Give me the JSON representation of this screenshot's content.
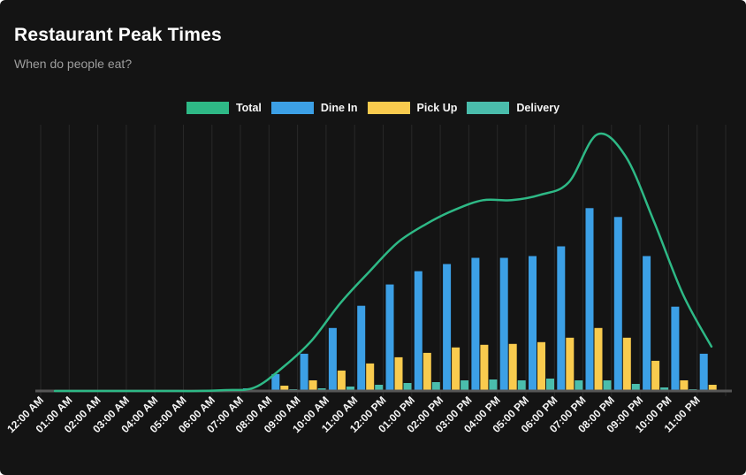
{
  "header": {
    "title": "Restaurant Peak Times",
    "subtitle": "When do people eat?"
  },
  "colors": {
    "background": "#141414",
    "title": "#ffffff",
    "subtitle": "#9e9e9e",
    "grid": "#282828",
    "axis": "#565656",
    "axis_label": "#f5f5f5"
  },
  "chart_data": {
    "type": "bar",
    "title": "Restaurant Peak Times",
    "subtitle": "When do people eat?",
    "categories": [
      "12:00 AM",
      "01:00 AM",
      "02:00 AM",
      "03:00 AM",
      "04:00 AM",
      "05:00 AM",
      "06:00 AM",
      "07:00 AM",
      "08:00 AM",
      "09:00 AM",
      "10:00 AM",
      "11:00 AM",
      "12:00 PM",
      "01:00 PM",
      "02:00 PM",
      "03:00 PM",
      "04:00 PM",
      "05:00 PM",
      "06:00 PM",
      "07:00 PM",
      "08:00 PM",
      "09:00 PM",
      "10:00 PM",
      "11:00 PM"
    ],
    "series": [
      {
        "name": "Total",
        "type": "line",
        "color": "#2eb986",
        "values": [
          0,
          0,
          0,
          0,
          0,
          0,
          1,
          4,
          27,
          57,
          99,
          134,
          167,
          188,
          204,
          215,
          215,
          221,
          235,
          289,
          264,
          190,
          109,
          50
        ]
      },
      {
        "name": "Dine In",
        "type": "bar",
        "color": "#3ca0e6",
        "values": [
          0,
          0,
          0,
          0,
          0,
          0,
          1,
          3,
          19,
          42,
          71,
          96,
          120,
          135,
          143,
          150,
          150,
          152,
          163,
          206,
          196,
          152,
          95,
          42
        ]
      },
      {
        "name": "Pick Up",
        "type": "bar",
        "color": "#f9cb4e",
        "values": [
          0,
          0,
          0,
          0,
          0,
          0,
          0,
          1,
          6,
          12,
          23,
          31,
          38,
          43,
          49,
          52,
          53,
          55,
          60,
          71,
          60,
          34,
          12,
          7
        ]
      },
      {
        "name": "Delivery",
        "type": "bar",
        "color": "#4abdac",
        "values": [
          0,
          0,
          0,
          0,
          0,
          0,
          0,
          0,
          2,
          3,
          5,
          7,
          9,
          10,
          12,
          13,
          12,
          14,
          12,
          12,
          8,
          4,
          2,
          1
        ]
      }
    ],
    "ylim": [
      0,
      300
    ],
    "grid": true,
    "legend_position": "top",
    "x_tick_rotation": -45,
    "y_axis_visible": false
  }
}
